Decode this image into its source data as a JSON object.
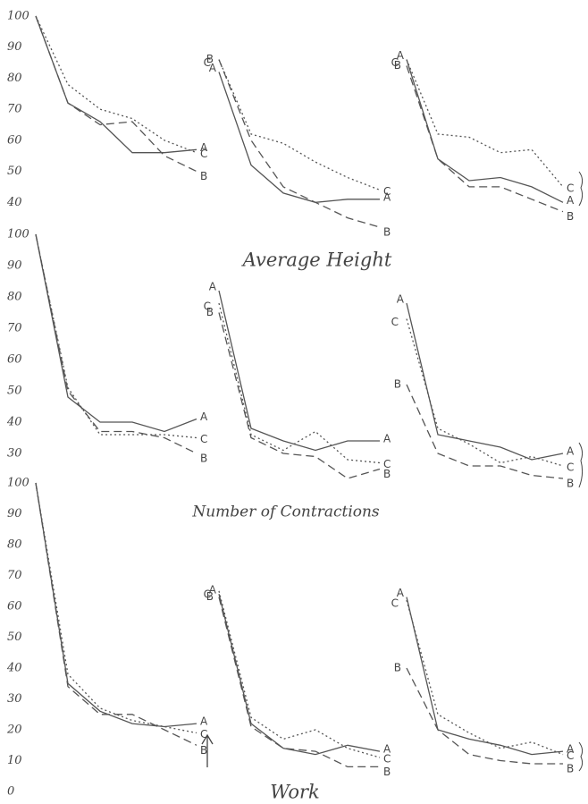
{
  "chart_data": [
    {
      "type": "line",
      "title": "Average Height",
      "ylim": [
        30,
        100
      ],
      "yticks": [
        100,
        90,
        80,
        70,
        60,
        50,
        40
      ],
      "categories": [
        null,
        null,
        null,
        null,
        null,
        null
      ],
      "panels": [
        {
          "series": [
            {
              "name": "A",
              "color": "#555555",
              "dash": "solid",
              "values": [
                100,
                72,
                66,
                56,
                56,
                57
              ]
            },
            {
              "name": "B",
              "color": "#555555",
              "dash": "dashed",
              "values": [
                100,
                72,
                65,
                66,
                55,
                50
              ]
            },
            {
              "name": "C",
              "color": "#555555",
              "dash": "dotted",
              "values": [
                100,
                78,
                70,
                67,
                60,
                56
              ]
            }
          ]
        },
        {
          "series": [
            {
              "name": "A",
              "color": "#555555",
              "dash": "solid",
              "values": [
                82,
                52,
                43,
                40,
                41,
                41
              ]
            },
            {
              "name": "B",
              "color": "#555555",
              "dash": "dashed",
              "values": [
                86,
                60,
                45,
                40,
                35,
                32
              ]
            },
            {
              "name": "C",
              "color": "#555555",
              "dash": "dotted",
              "values": [
                86,
                62,
                59,
                53,
                48,
                44
              ]
            }
          ]
        },
        {
          "series": [
            {
              "name": "A",
              "color": "#555555",
              "dash": "solid",
              "values": [
                86,
                54,
                47,
                48,
                45,
                40
              ]
            },
            {
              "name": "B",
              "color": "#555555",
              "dash": "dashed",
              "values": [
                84,
                54,
                45,
                45,
                41,
                37
              ]
            },
            {
              "name": "C",
              "color": "#555555",
              "dash": "dotted",
              "values": [
                86,
                62,
                61,
                56,
                57,
                45
              ]
            }
          ]
        }
      ]
    },
    {
      "type": "line",
      "title": "Number of Contractions",
      "ylim": [
        20,
        100
      ],
      "yticks": [
        100,
        90,
        80,
        70,
        60,
        50,
        40,
        30
      ],
      "categories": [
        null,
        null,
        null,
        null,
        null,
        null
      ],
      "panels": [
        {
          "series": [
            {
              "name": "A",
              "color": "#555555",
              "dash": "solid",
              "values": [
                100,
                48,
                40,
                40,
                37,
                41
              ]
            },
            {
              "name": "B",
              "color": "#555555",
              "dash": "dashed",
              "values": [
                100,
                50,
                37,
                37,
                35,
                30
              ]
            },
            {
              "name": "C",
              "color": "#555555",
              "dash": "dotted",
              "values": [
                100,
                51,
                36,
                36,
                36,
                35
              ]
            }
          ]
        },
        {
          "series": [
            {
              "name": "A",
              "color": "#555555",
              "dash": "solid",
              "values": [
                82,
                38,
                34,
                31,
                34,
                34
              ]
            },
            {
              "name": "B",
              "color": "#555555",
              "dash": "dashed",
              "values": [
                75,
                35,
                30,
                29,
                22,
                25
              ]
            },
            {
              "name": "C",
              "color": "#555555",
              "dash": "dotted",
              "values": [
                78,
                36,
                31,
                37,
                28,
                27
              ]
            }
          ]
        },
        {
          "series": [
            {
              "name": "A",
              "color": "#555555",
              "dash": "solid",
              "values": [
                78,
                36,
                34,
                32,
                28,
                30
              ]
            },
            {
              "name": "B",
              "color": "#555555",
              "dash": "dashed",
              "values": [
                52,
                30,
                26,
                26,
                23,
                22
              ]
            },
            {
              "name": "C",
              "color": "#555555",
              "dash": "dotted",
              "values": [
                73,
                38,
                33,
                27,
                29,
                26
              ]
            }
          ]
        }
      ]
    },
    {
      "type": "line",
      "title": "Work",
      "ylim": [
        0,
        100
      ],
      "yticks": [
        100,
        90,
        80,
        70,
        60,
        50,
        40,
        30,
        20,
        10,
        0
      ],
      "categories": [
        null,
        null,
        null,
        null,
        null,
        null
      ],
      "panels": [
        {
          "series": [
            {
              "name": "A",
              "color": "#555555",
              "dash": "solid",
              "values": [
                100,
                35,
                26,
                22,
                21,
                22
              ]
            },
            {
              "name": "B",
              "color": "#555555",
              "dash": "dashed",
              "values": [
                100,
                34,
                25,
                25,
                20,
                15
              ]
            },
            {
              "name": "C",
              "color": "#555555",
              "dash": "dotted",
              "values": [
                100,
                38,
                27,
                23,
                21,
                19
              ]
            }
          ]
        },
        {
          "series": [
            {
              "name": "A",
              "color": "#555555",
              "dash": "solid",
              "values": [
                64,
                22,
                14,
                12,
                15,
                13
              ]
            },
            {
              "name": "B",
              "color": "#555555",
              "dash": "dashed",
              "values": [
                63,
                21,
                14,
                13,
                8,
                8
              ]
            },
            {
              "name": "C",
              "color": "#555555",
              "dash": "dotted",
              "values": [
                65,
                24,
                17,
                20,
                14,
                11
              ]
            }
          ]
        },
        {
          "series": [
            {
              "name": "A",
              "color": "#555555",
              "dash": "solid",
              "values": [
                63,
                20,
                17,
                15,
                12,
                13
              ]
            },
            {
              "name": "B",
              "color": "#555555",
              "dash": "dashed",
              "values": [
                40,
                20,
                12,
                10,
                9,
                9
              ]
            },
            {
              "name": "C",
              "color": "#555555",
              "dash": "dotted",
              "values": [
                62,
                25,
                19,
                14,
                16,
                12
              ]
            }
          ]
        }
      ]
    }
  ]
}
